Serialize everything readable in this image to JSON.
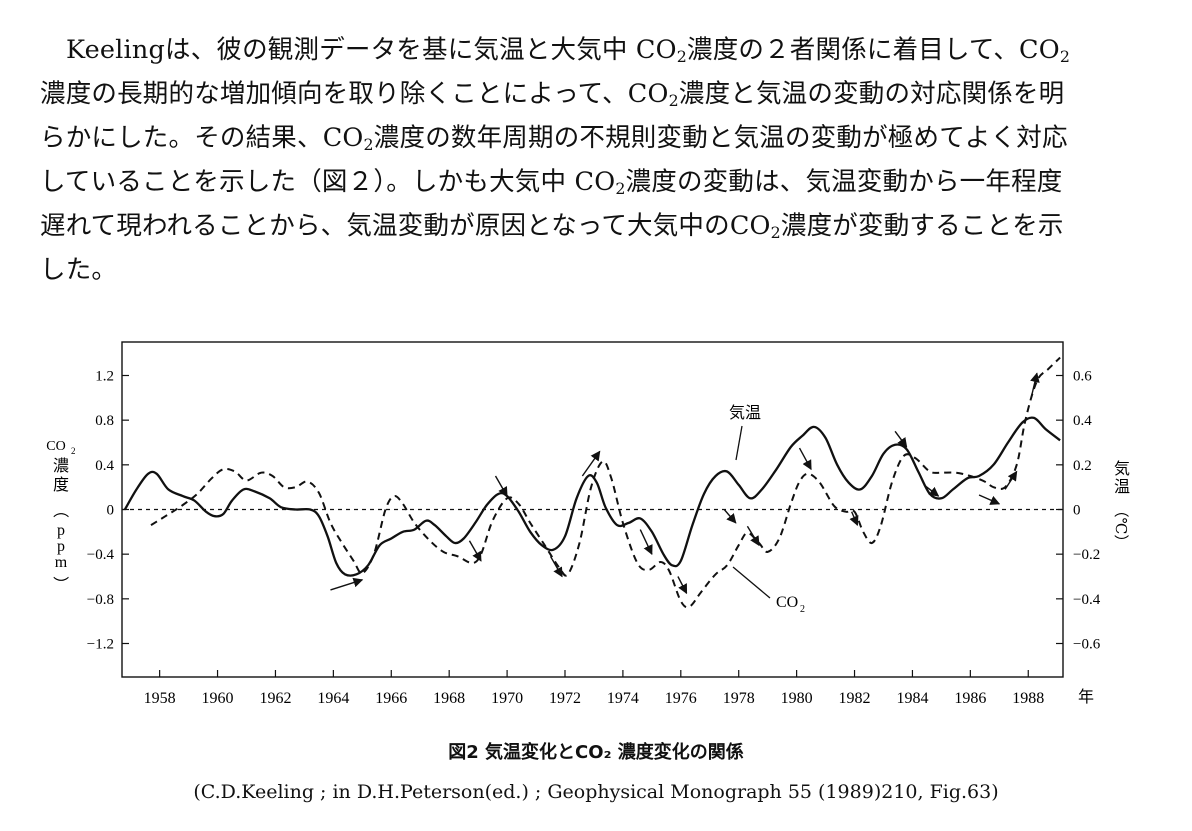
{
  "paragraph": {
    "lines": [
      {
        "parts": [
          {
            "t": "Keelingは、彼の観測データを基に気温と大気中 CO"
          },
          {
            "s": "2"
          },
          {
            "t": "濃度の２者関係に着目して、CO"
          },
          {
            "s": "2"
          }
        ]
      },
      {
        "parts": [
          {
            "t": "濃度の長期的な増加傾向を取り除くことによって、CO"
          },
          {
            "s": "2"
          },
          {
            "t": "濃度と気温の変動の対応関係を明"
          }
        ]
      },
      {
        "parts": [
          {
            "t": "らかにした。その結果、CO"
          },
          {
            "s": "2"
          },
          {
            "t": "濃度の数年周期の不規則変動と気温の変動が極めてよく対応"
          }
        ]
      },
      {
        "parts": [
          {
            "t": "していることを示した（図２）。しかも大気中 CO"
          },
          {
            "s": "2"
          },
          {
            "t": "濃度の変動は、気温変動から一年程度"
          }
        ]
      },
      {
        "parts": [
          {
            "t": "遅れて現われることから、気温変動が原因となって大気中のCO"
          },
          {
            "s": "2"
          },
          {
            "t": "濃度が変動することを示"
          }
        ]
      },
      {
        "parts": [
          {
            "t": "した。"
          }
        ]
      }
    ]
  },
  "chart_data": {
    "type": "line",
    "x_ticks": [
      "1958",
      "1960",
      "1962",
      "1964",
      "1966",
      "1968",
      "1970",
      "1972",
      "1974",
      "1976",
      "1978",
      "1980",
      "1982",
      "1984",
      "1986",
      "1988"
    ],
    "x_unit": "年",
    "xlim": [
      1956.7,
      1989.2
    ],
    "y_left": {
      "label_parts": [
        "CO",
        "2",
        "濃度",
        "（",
        "ppm",
        "）"
      ],
      "ticks": [
        "1.2",
        "0.8",
        "0.4",
        "0",
        "−0.4",
        "−0.8",
        "−1.2"
      ],
      "ylim": [
        -1.5,
        1.5
      ]
    },
    "y_right": {
      "label_parts": [
        "気温",
        "（℃）"
      ],
      "ticks": [
        "0.6",
        "0.4",
        "0.2",
        "0",
        "−0.2",
        "−0.4",
        "−0.6"
      ],
      "ylim": [
        -0.75,
        0.75
      ]
    },
    "zero_line": "dashed",
    "grid": false,
    "series": [
      {
        "name": "気温",
        "axis": "right",
        "style": "solid",
        "points": [
          [
            1956.8,
            0.0
          ],
          [
            1957.2,
            0.09
          ],
          [
            1957.6,
            0.16
          ],
          [
            1957.9,
            0.16
          ],
          [
            1958.3,
            0.09
          ],
          [
            1958.8,
            0.06
          ],
          [
            1959.2,
            0.04
          ],
          [
            1959.6,
            -0.01
          ],
          [
            1959.9,
            -0.03
          ],
          [
            1960.2,
            -0.02
          ],
          [
            1960.5,
            0.04
          ],
          [
            1960.9,
            0.09
          ],
          [
            1961.3,
            0.08
          ],
          [
            1961.8,
            0.05
          ],
          [
            1962.2,
            0.01
          ],
          [
            1962.7,
            0.0
          ],
          [
            1963.2,
            0.0
          ],
          [
            1963.5,
            -0.03
          ],
          [
            1963.8,
            -0.12
          ],
          [
            1964.1,
            -0.24
          ],
          [
            1964.4,
            -0.29
          ],
          [
            1964.8,
            -0.29
          ],
          [
            1965.2,
            -0.25
          ],
          [
            1965.6,
            -0.16
          ],
          [
            1966.0,
            -0.13
          ],
          [
            1966.4,
            -0.1
          ],
          [
            1966.8,
            -0.09
          ],
          [
            1967.2,
            -0.05
          ],
          [
            1967.5,
            -0.07
          ],
          [
            1967.9,
            -0.12
          ],
          [
            1968.2,
            -0.15
          ],
          [
            1968.5,
            -0.13
          ],
          [
            1968.9,
            -0.06
          ],
          [
            1969.3,
            0.02
          ],
          [
            1969.7,
            0.07
          ],
          [
            1970.0,
            0.06
          ],
          [
            1970.4,
            -0.01
          ],
          [
            1970.8,
            -0.1
          ],
          [
            1971.2,
            -0.16
          ],
          [
            1971.6,
            -0.18
          ],
          [
            1972.0,
            -0.12
          ],
          [
            1972.4,
            0.05
          ],
          [
            1972.8,
            0.15
          ],
          [
            1973.1,
            0.12
          ],
          [
            1973.4,
            0.01
          ],
          [
            1973.8,
            -0.07
          ],
          [
            1974.2,
            -0.06
          ],
          [
            1974.6,
            -0.04
          ],
          [
            1975.0,
            -0.1
          ],
          [
            1975.4,
            -0.2
          ],
          [
            1975.7,
            -0.25
          ],
          [
            1976.0,
            -0.23
          ],
          [
            1976.4,
            -0.07
          ],
          [
            1976.8,
            0.07
          ],
          [
            1977.2,
            0.15
          ],
          [
            1977.6,
            0.17
          ],
          [
            1978.0,
            0.11
          ],
          [
            1978.4,
            0.05
          ],
          [
            1978.8,
            0.09
          ],
          [
            1979.3,
            0.18
          ],
          [
            1979.8,
            0.28
          ],
          [
            1980.2,
            0.33
          ],
          [
            1980.6,
            0.37
          ],
          [
            1981.0,
            0.32
          ],
          [
            1981.4,
            0.2
          ],
          [
            1981.8,
            0.12
          ],
          [
            1982.2,
            0.09
          ],
          [
            1982.6,
            0.15
          ],
          [
            1983.0,
            0.25
          ],
          [
            1983.4,
            0.29
          ],
          [
            1983.8,
            0.27
          ],
          [
            1984.2,
            0.17
          ],
          [
            1984.6,
            0.07
          ],
          [
            1985.0,
            0.05
          ],
          [
            1985.4,
            0.09
          ],
          [
            1985.9,
            0.14
          ],
          [
            1986.3,
            0.15
          ],
          [
            1986.8,
            0.2
          ],
          [
            1987.3,
            0.3
          ],
          [
            1987.8,
            0.39
          ],
          [
            1988.2,
            0.41
          ],
          [
            1988.6,
            0.36
          ],
          [
            1989.1,
            0.31
          ]
        ]
      },
      {
        "name": "CO2",
        "axis": "left",
        "style": "dashed",
        "points": [
          [
            1957.7,
            -0.14
          ],
          [
            1958.2,
            -0.06
          ],
          [
            1958.8,
            0.04
          ],
          [
            1959.3,
            0.14
          ],
          [
            1959.8,
            0.28
          ],
          [
            1960.2,
            0.36
          ],
          [
            1960.6,
            0.34
          ],
          [
            1961.0,
            0.26
          ],
          [
            1961.5,
            0.33
          ],
          [
            1961.9,
            0.3
          ],
          [
            1962.3,
            0.2
          ],
          [
            1962.7,
            0.2
          ],
          [
            1963.1,
            0.25
          ],
          [
            1963.5,
            0.15
          ],
          [
            1963.9,
            -0.12
          ],
          [
            1964.3,
            -0.3
          ],
          [
            1964.7,
            -0.46
          ],
          [
            1965.0,
            -0.57
          ],
          [
            1965.4,
            -0.4
          ],
          [
            1965.8,
            0.0
          ],
          [
            1966.1,
            0.12
          ],
          [
            1966.4,
            0.05
          ],
          [
            1966.8,
            -0.12
          ],
          [
            1967.3,
            -0.27
          ],
          [
            1967.8,
            -0.38
          ],
          [
            1968.3,
            -0.42
          ],
          [
            1968.8,
            -0.48
          ],
          [
            1969.1,
            -0.4
          ],
          [
            1969.5,
            -0.1
          ],
          [
            1970.0,
            0.1
          ],
          [
            1970.4,
            0.05
          ],
          [
            1970.8,
            -0.12
          ],
          [
            1971.3,
            -0.32
          ],
          [
            1971.8,
            -0.52
          ],
          [
            1972.1,
            -0.58
          ],
          [
            1972.5,
            -0.3
          ],
          [
            1972.9,
            0.2
          ],
          [
            1973.3,
            0.43
          ],
          [
            1973.6,
            0.28
          ],
          [
            1974.0,
            -0.12
          ],
          [
            1974.5,
            -0.48
          ],
          [
            1974.9,
            -0.54
          ],
          [
            1975.3,
            -0.47
          ],
          [
            1975.6,
            -0.55
          ],
          [
            1976.0,
            -0.82
          ],
          [
            1976.3,
            -0.87
          ],
          [
            1976.7,
            -0.74
          ],
          [
            1977.2,
            -0.58
          ],
          [
            1977.6,
            -0.5
          ],
          [
            1978.0,
            -0.32
          ],
          [
            1978.3,
            -0.21
          ],
          [
            1978.7,
            -0.3
          ],
          [
            1979.0,
            -0.38
          ],
          [
            1979.4,
            -0.26
          ],
          [
            1979.8,
            0.05
          ],
          [
            1980.1,
            0.25
          ],
          [
            1980.4,
            0.32
          ],
          [
            1980.8,
            0.24
          ],
          [
            1981.3,
            0.03
          ],
          [
            1981.7,
            -0.02
          ],
          [
            1982.0,
            -0.02
          ],
          [
            1982.3,
            -0.2
          ],
          [
            1982.6,
            -0.3
          ],
          [
            1982.9,
            -0.15
          ],
          [
            1983.3,
            0.25
          ],
          [
            1983.7,
            0.48
          ],
          [
            1984.1,
            0.46
          ],
          [
            1984.6,
            0.34
          ],
          [
            1985.0,
            0.33
          ],
          [
            1985.5,
            0.33
          ],
          [
            1986.0,
            0.3
          ],
          [
            1986.5,
            0.25
          ],
          [
            1986.8,
            0.2
          ],
          [
            1987.2,
            0.2
          ],
          [
            1987.6,
            0.4
          ],
          [
            1987.9,
            0.8
          ],
          [
            1988.3,
            1.15
          ],
          [
            1988.7,
            1.26
          ],
          [
            1989.1,
            1.36
          ]
        ]
      }
    ],
    "annotations": {
      "temp_label": "気温",
      "co2_label_parts": [
        "CO",
        "2"
      ]
    }
  },
  "caption": {
    "title": "図2 気温変化とCO₂ 濃度変化の関係",
    "source": "(C.D.Keeling ; in D.H.Peterson(ed.) ; Geophysical Monograph 55 (1989)210, Fig.63)"
  }
}
